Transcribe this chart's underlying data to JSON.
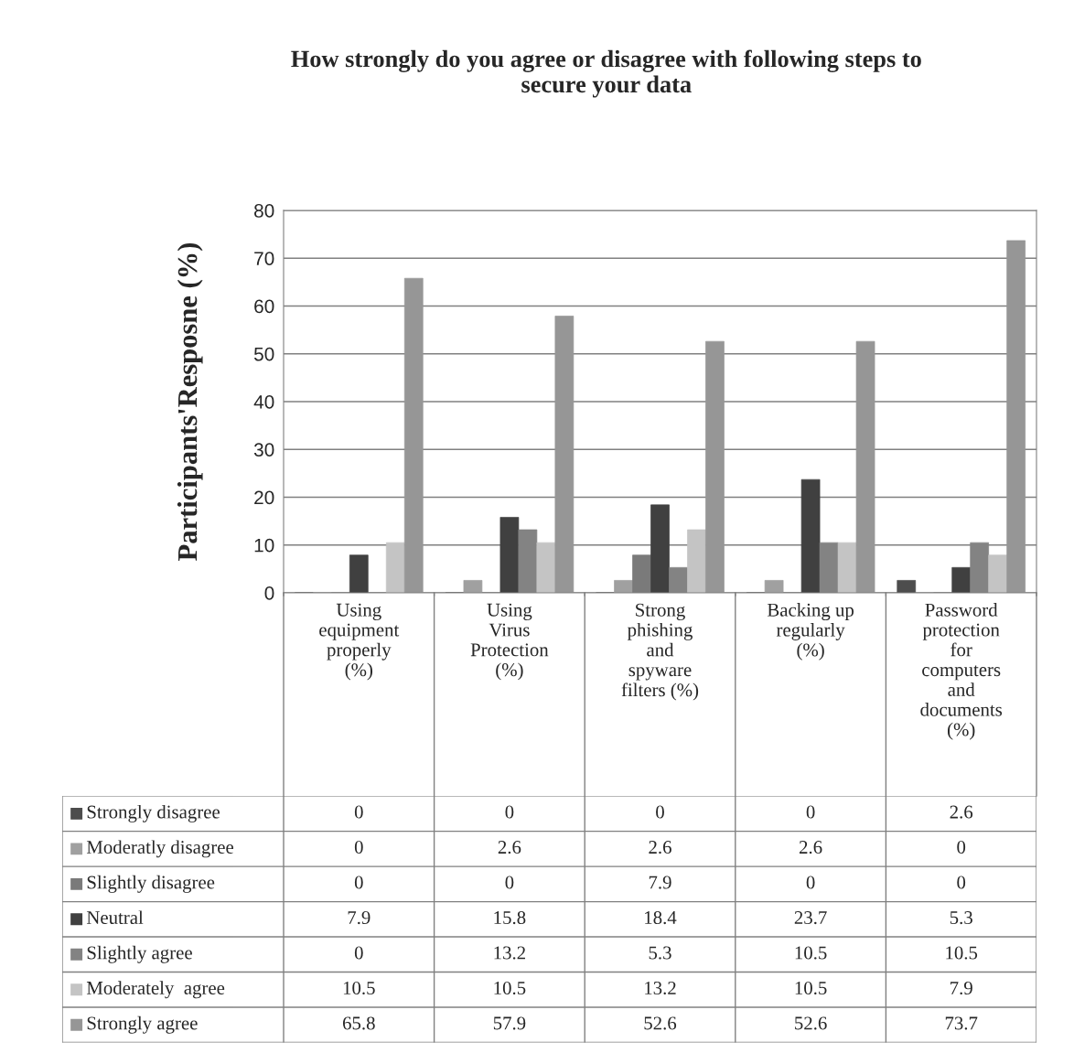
{
  "chart_data": {
    "type": "bar",
    "title": "How strongly do you agree or disagree with following steps to\nsecure your data",
    "ylabel": "Participants'Resposne (%)",
    "categories": [
      "Using\nequipment\nproperly\n(%)",
      "Using\nVirus\nProtection\n(%)",
      "Strong\nphishing\nand\nspyware\nfilters (%)",
      "Backing up\nregularly\n(%)",
      "Password\nprotection\nfor\ncomputers\nand\ndocuments\n(%)"
    ],
    "series": [
      {
        "name": "Strongly disagree",
        "color": "#4d4d4d",
        "values": [
          0,
          0,
          0,
          0,
          2.6
        ]
      },
      {
        "name": "Moderatly disagree",
        "color": "#a0a0a0",
        "values": [
          0,
          2.6,
          2.6,
          2.6,
          0
        ]
      },
      {
        "name": "Slightly disagree",
        "color": "#7a7a7a",
        "values": [
          0,
          0,
          7.9,
          0,
          0
        ]
      },
      {
        "name": "Neutral",
        "color": "#404040",
        "values": [
          7.9,
          15.8,
          18.4,
          23.7,
          5.3
        ]
      },
      {
        "name": "Slightly agree",
        "color": "#838383",
        "values": [
          0,
          13.2,
          5.3,
          10.5,
          10.5
        ]
      },
      {
        "name": "Moderately  agree",
        "color": "#c4c4c4",
        "values": [
          10.5,
          10.5,
          13.2,
          10.5,
          7.9
        ]
      },
      {
        "name": "Strongly agree",
        "color": "#969696",
        "values": [
          65.8,
          57.9,
          52.6,
          52.6,
          73.7
        ]
      }
    ],
    "ylim": [
      0,
      80
    ],
    "yticks": [
      0,
      10,
      20,
      30,
      40,
      50,
      60,
      70,
      80
    ],
    "grid": "y",
    "legend": "bottom",
    "data_labels": true
  }
}
